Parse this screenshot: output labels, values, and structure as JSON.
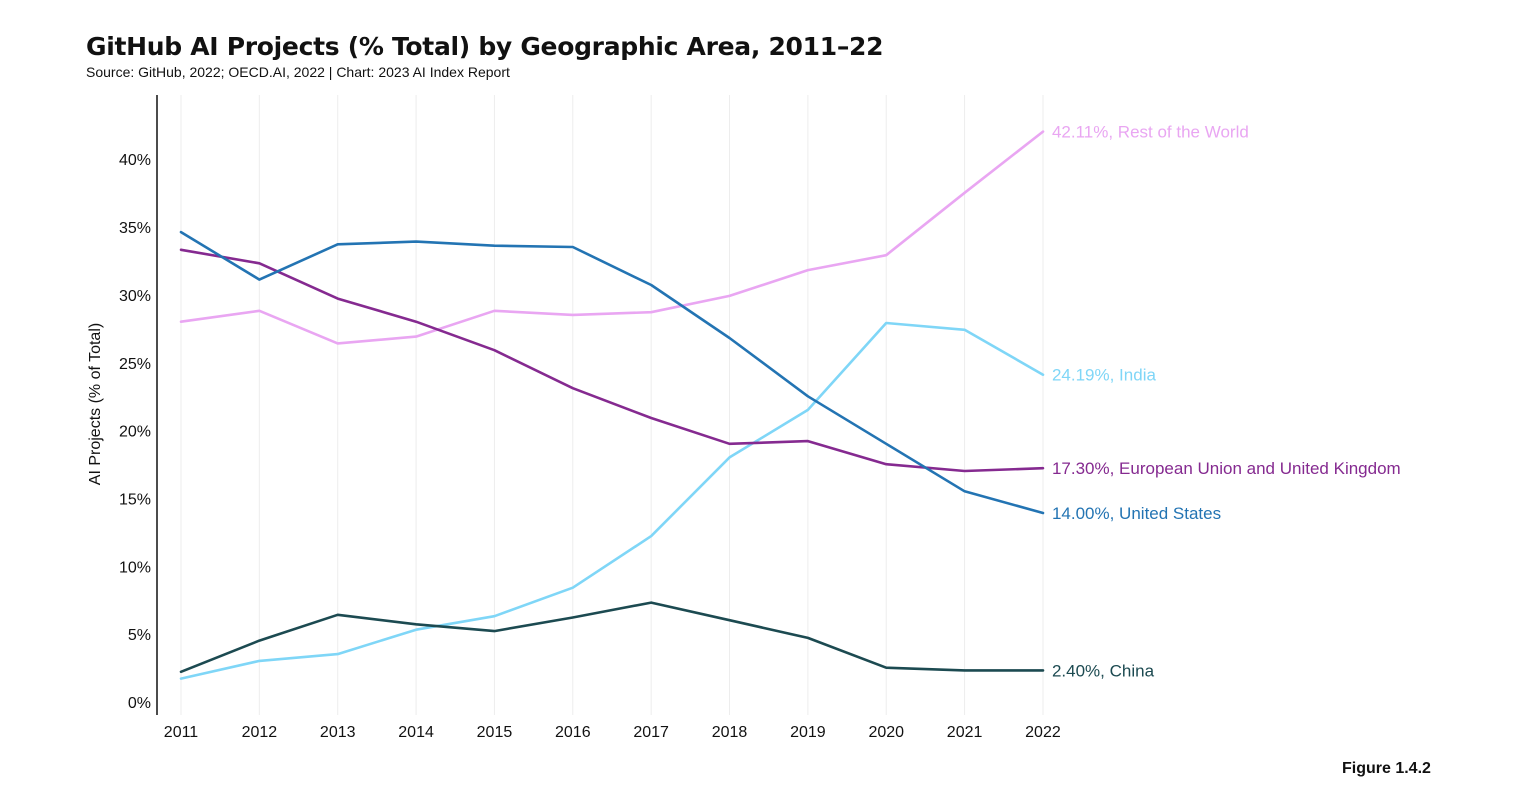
{
  "header": {
    "title": "GitHub AI Projects (% Total) by Geographic Area, 2011–22",
    "subtitle": "Source: GitHub, 2022; OECD.AI, 2022 | Chart: 2023 AI Index Report"
  },
  "footer": {
    "figure_label": "Figure 1.4.2"
  },
  "chart_data": {
    "type": "line",
    "title": "GitHub AI Projects (% Total) by Geographic Area, 2011–22",
    "xlabel": "",
    "ylabel": "AI Projects (% of Total)",
    "x": [
      2011,
      2012,
      2013,
      2014,
      2015,
      2016,
      2017,
      2018,
      2019,
      2020,
      2021,
      2022
    ],
    "ylim": [
      0,
      45
    ],
    "yticks": [
      0,
      5,
      10,
      15,
      20,
      25,
      30,
      35,
      40
    ],
    "ytick_labels": [
      "0%",
      "5%",
      "10%",
      "15%",
      "20%",
      "25%",
      "30%",
      "35%",
      "40%"
    ],
    "grid": "vertical",
    "series": [
      {
        "name": "Rest of the World",
        "color": "#e9a6f2",
        "values": [
          28.1,
          28.9,
          26.5,
          27.0,
          28.9,
          28.6,
          28.8,
          30.0,
          31.9,
          33.0,
          37.6,
          42.11
        ],
        "end_label": "42.11%, Rest of the World"
      },
      {
        "name": "India",
        "color": "#7fd6f7",
        "values": [
          1.8,
          3.1,
          3.6,
          5.4,
          6.4,
          8.5,
          12.3,
          18.1,
          21.6,
          28.0,
          27.5,
          24.19
        ],
        "end_label": "24.19%, India"
      },
      {
        "name": "European Union and United Kingdom",
        "color": "#852a90",
        "values": [
          33.4,
          32.4,
          29.8,
          28.1,
          26.0,
          23.2,
          21.0,
          19.1,
          19.3,
          17.6,
          17.1,
          17.3
        ],
        "end_label": "17.30%, European Union and United Kingdom"
      },
      {
        "name": "United States",
        "color": "#2374b3",
        "values": [
          34.7,
          31.2,
          33.8,
          34.0,
          33.7,
          33.6,
          30.8,
          26.9,
          22.6,
          19.1,
          15.6,
          14.0
        ],
        "end_label": "14.00%, United States"
      },
      {
        "name": "China",
        "color": "#1c4a51",
        "values": [
          2.3,
          4.6,
          6.5,
          5.8,
          5.3,
          6.3,
          7.4,
          6.1,
          4.8,
          2.6,
          2.4,
          2.4
        ],
        "end_label": "2.40%, China"
      }
    ]
  }
}
